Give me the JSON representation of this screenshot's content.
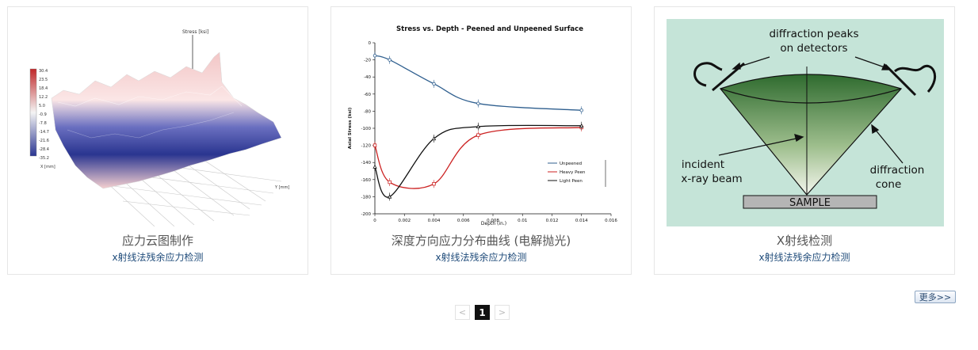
{
  "cards": [
    {
      "title": "应力云图制作",
      "subtitle": "x射线法残余应力检测",
      "image": {
        "axis_stress": "Stress [ksi]",
        "axis_x": "X [mm]",
        "axis_y": "Y [mm]",
        "legend": [
          "30.4",
          "23.5",
          "18.4",
          "12.2",
          "5.0",
          "-0.9",
          "-7.8",
          "-14.7",
          "-21.6",
          "-28.4",
          "-35.2"
        ]
      }
    },
    {
      "title": "深度方向应力分布曲线 (电解抛光)",
      "subtitle": "x射线法残余应力检测",
      "chart_data": {
        "type": "line",
        "title": "Stress vs. Depth - Peened and Unpeened Surface",
        "xlabel": "Depth (in.)",
        "ylabel": "Axial Stress (ksi)",
        "xlim": [
          0,
          0.016
        ],
        "ylim": [
          -200,
          0
        ],
        "x_ticks": [
          "0",
          "0.002",
          "0.004",
          "0.006",
          "0.008",
          "0.01",
          "0.012",
          "0.014",
          "0.016"
        ],
        "y_ticks": [
          "0",
          "-20",
          "-40",
          "-60",
          "-80",
          "-100",
          "-120",
          "-140",
          "-160",
          "-180",
          "-200"
        ],
        "legend_position": "bottom-right",
        "series": [
          {
            "name": "Unpeened",
            "color": "#2f5f8f",
            "points": [
              [
                0,
                -15
              ],
              [
                0.001,
                -20
              ],
              [
                0.004,
                -48
              ],
              [
                0.007,
                -71
              ],
              [
                0.014,
                -79
              ]
            ]
          },
          {
            "name": "Heavy Peen",
            "color": "#cc2222",
            "points": [
              [
                0,
                -120
              ],
              [
                0.001,
                -163
              ],
              [
                0.004,
                -165
              ],
              [
                0.007,
                -108
              ],
              [
                0.014,
                -99
              ]
            ]
          },
          {
            "name": "Light Peen",
            "color": "#111111",
            "points": [
              [
                0,
                -145
              ],
              [
                0.001,
                -180
              ],
              [
                0.004,
                -112
              ],
              [
                0.007,
                -98
              ],
              [
                0.014,
                -97
              ]
            ]
          }
        ]
      }
    },
    {
      "title": "X射线检测",
      "subtitle": "x射线法残余应力检测",
      "image": {
        "label_peaks_line1": "diffraction peaks",
        "label_peaks_line2": "on detectors",
        "label_incident_line1": "incident",
        "label_incident_line2": "x-ray beam",
        "label_cone_line1": "diffraction",
        "label_cone_line2": "cone",
        "label_sample": "SAMPLE"
      }
    }
  ],
  "pagination": {
    "prev": "<",
    "current": "1",
    "next": ">"
  },
  "more_button": "更多>>"
}
